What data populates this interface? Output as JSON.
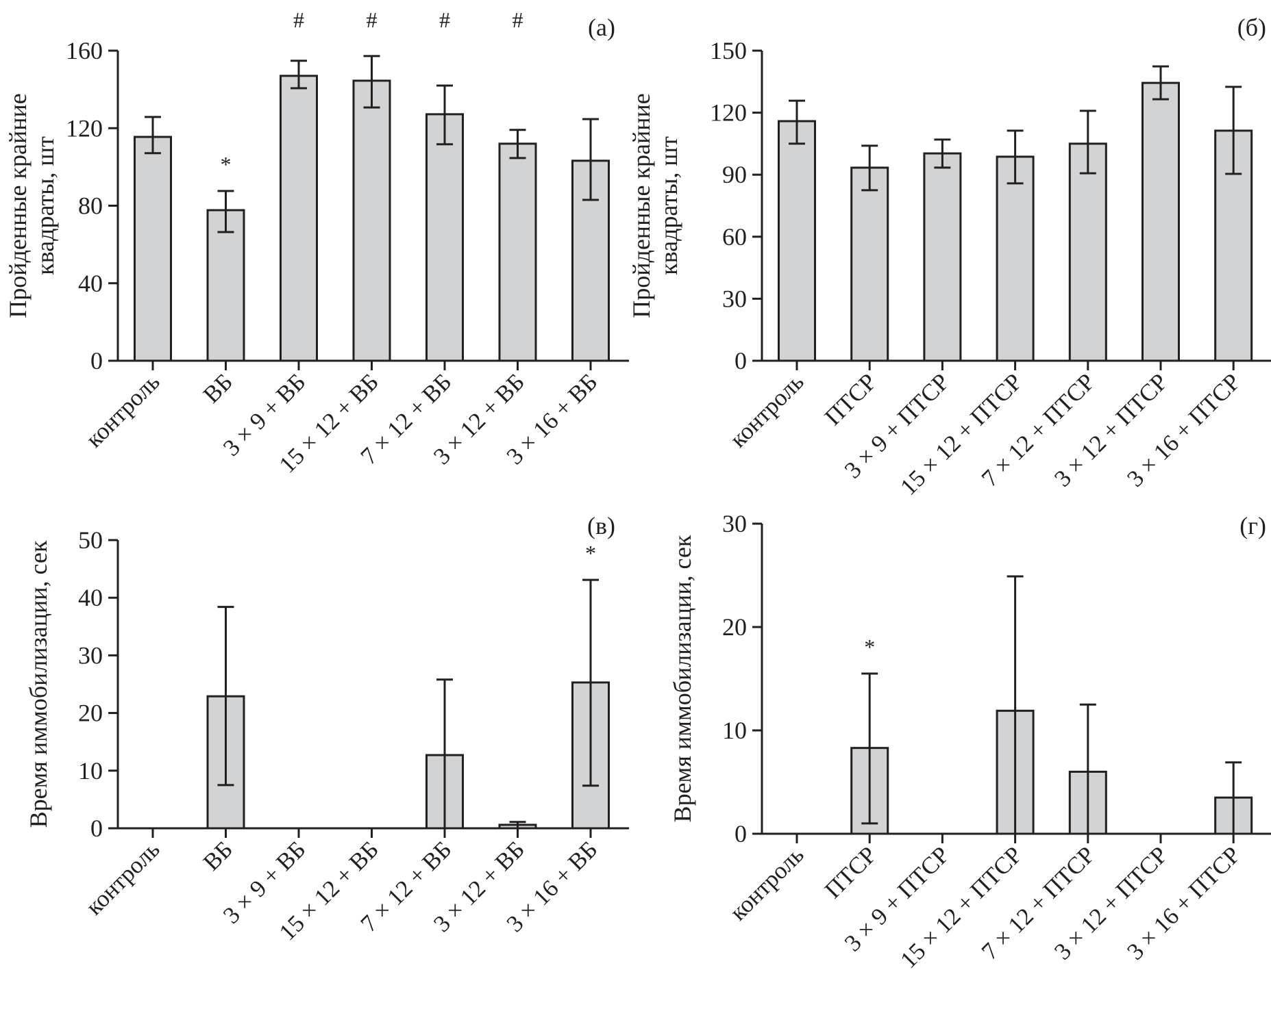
{
  "chart_data": [
    {
      "id": "a",
      "type": "bar",
      "panel_label": "(а)",
      "ylabel_lines": [
        "Пройденные крайние",
        "квадраты, шт"
      ],
      "ylim": [
        0,
        160
      ],
      "yticks": [
        0,
        40,
        80,
        120,
        160
      ],
      "categories": [
        "контроль",
        "ВБ",
        "3 × 9 + ВБ",
        "15 × 12 + ВБ",
        "7 × 12 + ВБ",
        "3 × 12 + ВБ",
        "3 × 16 + ВБ"
      ],
      "values": [
        115.5,
        77.7,
        147.0,
        144.5,
        127.2,
        112.0,
        103.2
      ],
      "error_high": [
        125.8,
        87.6,
        154.8,
        157.2,
        142.0,
        119.1,
        124.7
      ],
      "error_low": [
        107.1,
        66.4,
        140.6,
        130.7,
        111.7,
        104.6,
        83.0
      ],
      "annotations": [
        {
          "category_index": 1,
          "text": "*",
          "position": "above-error"
        },
        {
          "category_index": 2,
          "text": "#",
          "position": "top"
        },
        {
          "category_index": 3,
          "text": "#",
          "position": "top"
        },
        {
          "category_index": 4,
          "text": "#",
          "position": "top"
        },
        {
          "category_index": 5,
          "text": "#",
          "position": "top"
        }
      ],
      "grid": false,
      "legend": "none"
    },
    {
      "id": "b",
      "type": "bar",
      "panel_label": "(б)",
      "ylabel_lines": [
        "Пройденные крайние",
        "квадраты, шт"
      ],
      "ylim": [
        0,
        150
      ],
      "yticks": [
        0,
        30,
        60,
        90,
        120,
        150
      ],
      "categories": [
        "контроль",
        "ПТСР",
        "3 × 9 + ПТСР",
        "15 × 12 + ПТСР",
        "7 × 12 + ПТСР",
        "3 × 12 + ПТСР",
        "3 × 16 + ПТСР"
      ],
      "values": [
        115.9,
        93.4,
        100.3,
        98.7,
        105.0,
        134.4,
        111.3
      ],
      "error_high": [
        125.8,
        104.0,
        107.0,
        111.3,
        120.9,
        142.4,
        132.5
      ],
      "error_low": [
        105.0,
        82.5,
        93.4,
        85.8,
        90.7,
        126.5,
        90.4
      ],
      "annotations": [],
      "grid": false,
      "legend": "none"
    },
    {
      "id": "c",
      "type": "bar",
      "panel_label": "(в)",
      "ylabel_lines": [
        "Время иммобилизации, сек"
      ],
      "ylim": [
        0,
        50
      ],
      "yticks": [
        0,
        10,
        20,
        30,
        40,
        50
      ],
      "categories": [
        "контроль",
        "ВБ",
        "3 × 9 + ВБ",
        "15 × 12 + ВБ",
        "7 × 12 + ВБ",
        "3 × 12 + ВБ",
        "3 × 16 + ВБ"
      ],
      "values": [
        0,
        22.9,
        0,
        0,
        12.7,
        0.6,
        25.3
      ],
      "error_high": [
        null,
        38.4,
        null,
        null,
        25.8,
        1.1,
        43.1
      ],
      "error_low": [
        null,
        7.5,
        null,
        null,
        0,
        0,
        7.4
      ],
      "annotations": [
        {
          "category_index": 6,
          "text": "*",
          "position": "above-error"
        }
      ],
      "grid": false,
      "legend": "none"
    },
    {
      "id": "d",
      "type": "bar",
      "panel_label": "(г)",
      "ylabel_lines": [
        "Время иммобилизации, сек"
      ],
      "ylim": [
        0,
        30
      ],
      "yticks": [
        0,
        10,
        20,
        30
      ],
      "categories": [
        "контроль",
        "ПТСР",
        "3 × 9 + ПТСР",
        "15 × 12 + ПТСР",
        "7 × 12 + ПТСР",
        "3 × 12 + ПТСР",
        "3 × 16 + ПТСР"
      ],
      "values": [
        0,
        8.3,
        0,
        11.9,
        6.0,
        0,
        3.5
      ],
      "error_high": [
        null,
        15.5,
        null,
        24.9,
        12.5,
        null,
        6.9
      ],
      "error_low": [
        null,
        1.0,
        null,
        0,
        0,
        null,
        0
      ],
      "annotations": [
        {
          "category_index": 1,
          "text": "*",
          "position": "above-error"
        }
      ],
      "grid": false,
      "legend": "none"
    }
  ]
}
